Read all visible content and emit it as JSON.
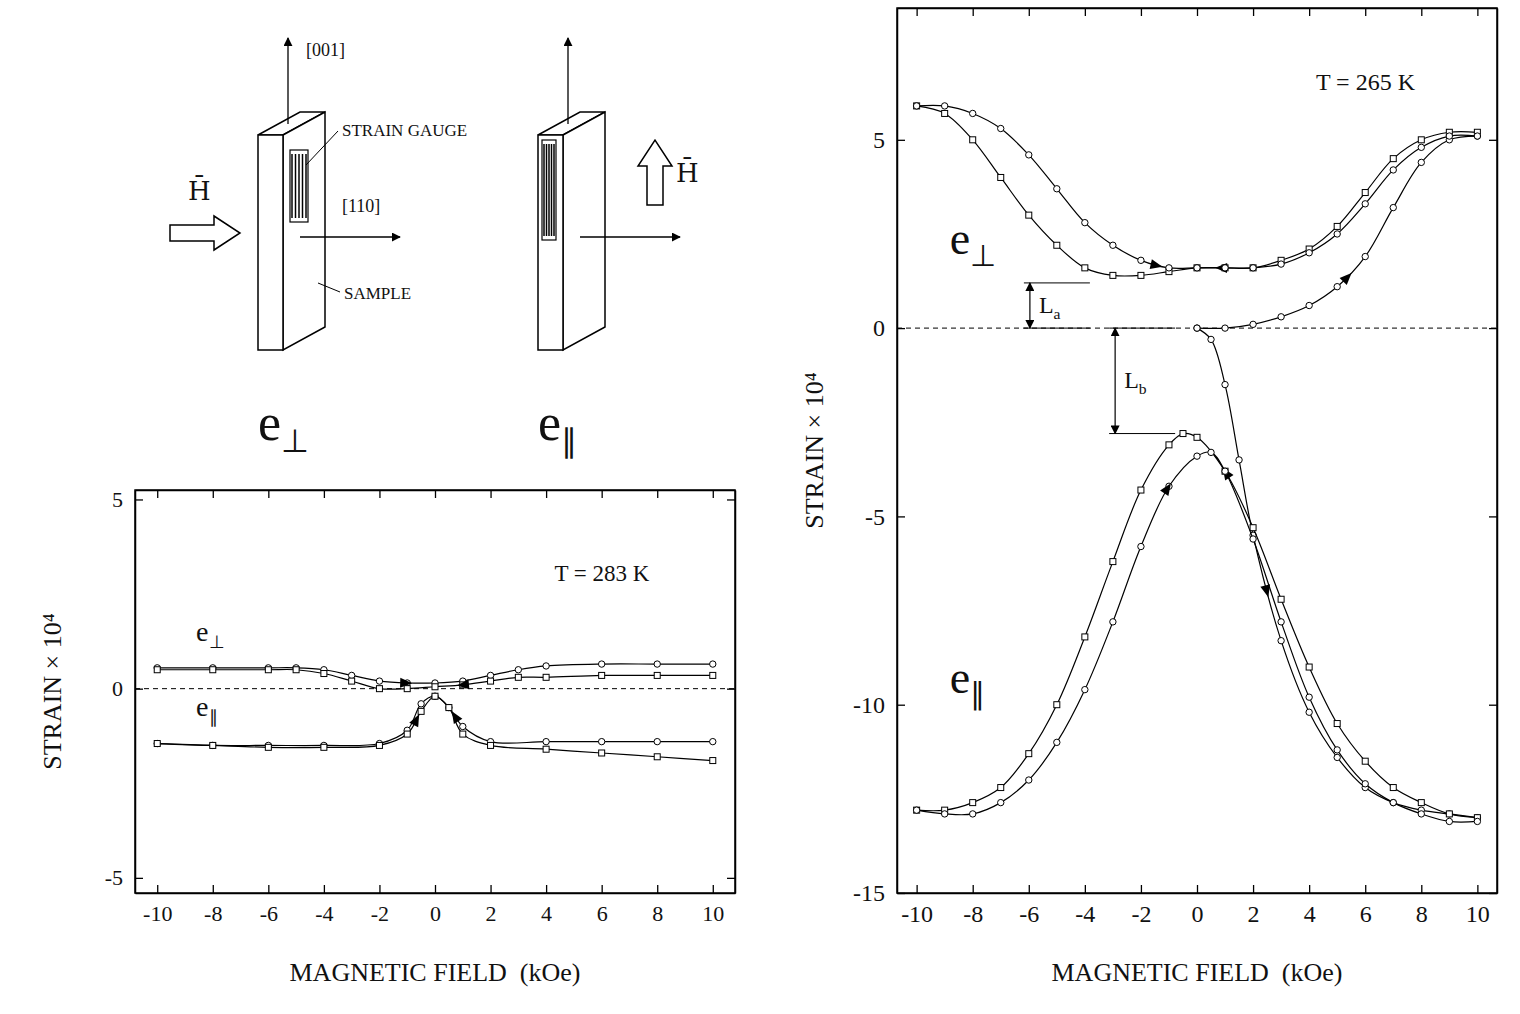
{
  "chart_data": [
    {
      "type": "line",
      "xlabel": "MAGNETIC FIELD  (kOe)",
      "ylabel": "STRAIN × 10⁴",
      "xlim": [
        -10.8,
        10.8
      ],
      "ylim": [
        -5.4,
        5.25
      ],
      "xticks": [
        -10,
        -8,
        -6,
        -4,
        -2,
        0,
        2,
        4,
        6,
        8,
        10
      ],
      "yticks": [
        -5,
        0,
        5
      ],
      "reference_lines": [
        {
          "y": 0,
          "line_style": "dashed"
        }
      ],
      "annotations": [
        {
          "text": "T = 283 K",
          "x": 4.3,
          "y": 2.85
        },
        {
          "text": "e",
          "subscript": "⊥",
          "x": -8.6,
          "y": 1.27
        },
        {
          "text": "e",
          "subscript": "∥",
          "x": -8.6,
          "y": -0.72
        }
      ],
      "series": [
        {
          "color": "#000000",
          "marker": "circle",
          "line_style": "solid",
          "x": [
            -10,
            -8,
            -6,
            -5,
            -4,
            -3,
            -2,
            -1,
            0,
            1,
            2,
            3,
            4,
            6,
            8,
            10
          ],
          "values": [
            0.55,
            0.55,
            0.55,
            0.55,
            0.5,
            0.35,
            0.2,
            0.15,
            0.15,
            0.2,
            0.35,
            0.5,
            0.6,
            0.65,
            0.65,
            0.65
          ]
        },
        {
          "color": "#000000",
          "marker": "square",
          "line_style": "solid",
          "x": [
            10,
            8,
            6,
            4,
            3,
            2,
            1,
            0,
            -1,
            -2,
            -3,
            -4,
            -5,
            -6,
            -8,
            -10
          ],
          "values": [
            0.35,
            0.35,
            0.35,
            0.3,
            0.3,
            0.2,
            0.1,
            0.05,
            0,
            0,
            0.2,
            0.4,
            0.5,
            0.5,
            0.5,
            0.5
          ]
        },
        {
          "color": "#000000",
          "marker": "circle",
          "line_style": "solid",
          "x": [
            10,
            8,
            6,
            4,
            2,
            1,
            0.5,
            0,
            -0.5,
            -1,
            -2,
            -4,
            -6,
            -8,
            -10
          ],
          "values": [
            -1.4,
            -1.4,
            -1.4,
            -1.4,
            -1.4,
            -1.0,
            -0.5,
            -0.2,
            -0.4,
            -1.1,
            -1.45,
            -1.5,
            -1.5,
            -1.5,
            -1.45
          ]
        },
        {
          "color": "#000000",
          "marker": "square",
          "line_style": "solid",
          "x": [
            -10,
            -8,
            -6,
            -4,
            -2,
            -1,
            -0.5,
            0,
            0.5,
            1,
            2,
            4,
            6,
            8,
            10
          ],
          "values": [
            -1.45,
            -1.5,
            -1.55,
            -1.55,
            -1.5,
            -1.2,
            -0.6,
            -0.2,
            -0.5,
            -1.2,
            -1.5,
            -1.6,
            -1.7,
            -1.8,
            -1.9
          ]
        }
      ]
    },
    {
      "type": "line",
      "xlabel": "MAGNETIC FIELD  (kOe)",
      "ylabel": "STRAIN × 10⁴",
      "xlim": [
        -10.7,
        10.7
      ],
      "ylim": [
        -15,
        8.5
      ],
      "xticks": [
        -10,
        -8,
        -6,
        -4,
        -2,
        0,
        2,
        4,
        6,
        8,
        10
      ],
      "yticks": [
        -15,
        -10,
        -5,
        0,
        5
      ],
      "reference_lines": [
        {
          "y": 0,
          "line_style": "dashed"
        }
      ],
      "annotations": [
        {
          "text": "T = 265 K",
          "x": 4.24,
          "y": 6.32
        },
        {
          "text": "e",
          "subscript": "⊥",
          "x": -8.82,
          "y": 1.96
        },
        {
          "text": "e",
          "subscript": "∥",
          "x": -8.82,
          "y": -9.68
        },
        {
          "text": "L",
          "subscript": "a",
          "x": -5.96,
          "y_from": 0,
          "y_to": 1.2
        },
        {
          "text": "L",
          "subscript": "b",
          "x": -2.92,
          "y_from": 0,
          "y_to": -2.8
        }
      ],
      "series": [
        {
          "color": "#000000",
          "marker": "circle",
          "line_style": "solid",
          "x": [
            0,
            1,
            2,
            3,
            4,
            5,
            6,
            7,
            8,
            9,
            10
          ],
          "values": [
            0,
            0,
            0.1,
            0.3,
            0.6,
            1.1,
            1.9,
            3.2,
            4.4,
            5.0,
            5.1
          ]
        },
        {
          "color": "#000000",
          "marker": "square",
          "line_style": "solid",
          "x": [
            10,
            9,
            8,
            7,
            6,
            5,
            4,
            3,
            2,
            1,
            0,
            -1,
            -2,
            -3,
            -4,
            -5,
            -6,
            -7,
            -8,
            -9,
            -10
          ],
          "values": [
            5.2,
            5.2,
            5.0,
            4.5,
            3.6,
            2.7,
            2.1,
            1.8,
            1.6,
            1.6,
            1.6,
            1.5,
            1.4,
            1.4,
            1.6,
            2.2,
            3.0,
            4.0,
            5.0,
            5.7,
            5.9
          ]
        },
        {
          "color": "#000000",
          "marker": "circle",
          "line_style": "solid",
          "x": [
            -10,
            -9,
            -8,
            -7,
            -6,
            -5,
            -4,
            -3,
            -2,
            -1,
            0,
            1,
            2,
            3,
            4,
            5,
            6,
            7,
            8,
            9,
            10
          ],
          "values": [
            5.9,
            5.9,
            5.7,
            5.3,
            4.6,
            3.7,
            2.8,
            2.2,
            1.8,
            1.6,
            1.6,
            1.6,
            1.6,
            1.7,
            2.0,
            2.5,
            3.3,
            4.2,
            4.8,
            5.1,
            5.1
          ]
        },
        {
          "color": "#000000",
          "marker": "circle",
          "line_style": "solid",
          "x": [
            0,
            0.5,
            1,
            1.5,
            2,
            3,
            4,
            5,
            6,
            7,
            8,
            9,
            10
          ],
          "values": [
            0,
            -0.3,
            -1.5,
            -3.5,
            -5.5,
            -8.3,
            -10.2,
            -11.4,
            -12.2,
            -12.6,
            -12.8,
            -12.9,
            -13.0
          ]
        },
        {
          "color": "#000000",
          "marker": "square",
          "line_style": "solid",
          "x": [
            10,
            9,
            8,
            7,
            6,
            5,
            4,
            3,
            2,
            1,
            0,
            -0.5,
            -1,
            -2,
            -3,
            -4,
            -5,
            -6,
            -7,
            -8,
            -9,
            -10
          ],
          "values": [
            -13.0,
            -12.9,
            -12.6,
            -12.2,
            -11.5,
            -10.5,
            -9.0,
            -7.2,
            -5.3,
            -3.8,
            -2.9,
            -2.8,
            -3.1,
            -4.3,
            -6.2,
            -8.2,
            -10.0,
            -11.3,
            -12.2,
            -12.6,
            -12.8,
            -12.8
          ]
        },
        {
          "color": "#000000",
          "marker": "circle",
          "line_style": "solid",
          "x": [
            -10,
            -9,
            -8,
            -7,
            -6,
            -5,
            -4,
            -3,
            -2,
            -1,
            0,
            0.5,
            1,
            2,
            3,
            4,
            5,
            6,
            7,
            8,
            9,
            10
          ],
          "values": [
            -12.8,
            -12.9,
            -12.9,
            -12.6,
            -12.0,
            -11.0,
            -9.6,
            -7.8,
            -5.8,
            -4.2,
            -3.4,
            -3.3,
            -3.8,
            -5.6,
            -7.8,
            -9.8,
            -11.2,
            -12.1,
            -12.6,
            -12.9,
            -13.1,
            -13.1
          ]
        }
      ]
    }
  ],
  "diagram": {
    "panels": [
      {
        "label": {
          "text": "e",
          "subscript": "⊥"
        },
        "field_label": "H̄",
        "direction_labels": [
          "[001]",
          "[110]"
        ],
        "callouts": [
          "STRAIN GAUGE",
          "SAMPLE"
        ]
      },
      {
        "label": {
          "text": "e",
          "subscript": "∥"
        },
        "field_label": "H̄"
      }
    ]
  }
}
